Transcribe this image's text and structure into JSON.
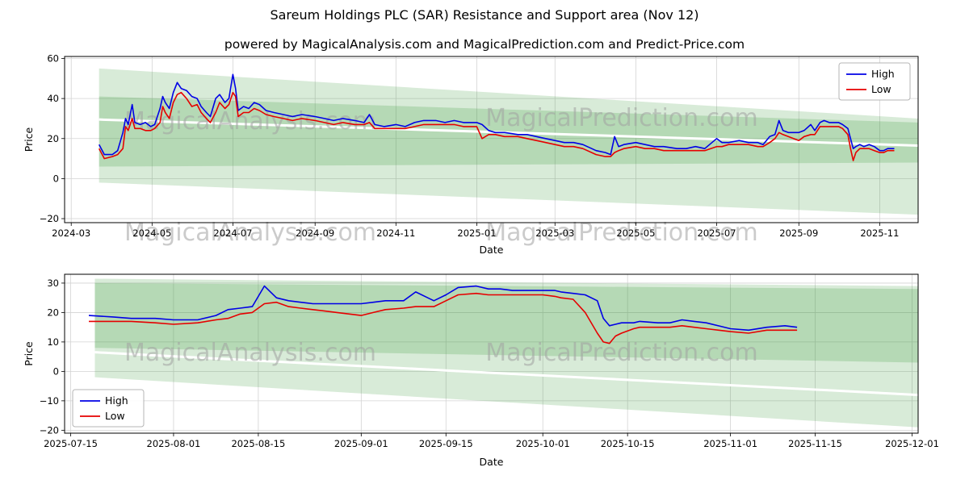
{
  "page": {
    "title": "Sareum Holdings PLC (SAR) Resistance and Support area (Nov 12)",
    "subtitle": "powered by MagicalAnalysis.com and MagicalPrediction.com and Predict-Price.com"
  },
  "watermark": {
    "left": "MagicalAnalysis.com",
    "right": "MagicalPrediction.com"
  },
  "colors": {
    "high": "#0000e6",
    "low": "#e60000",
    "band": "#3c9a3c",
    "grid": "#d3d3d3",
    "spine": "#000000",
    "watermark": "#a0a0a0"
  },
  "chart_data": [
    {
      "type": "line",
      "title": "",
      "xlabel": "Date",
      "ylabel": "Price",
      "x_domain": [
        "2024-02-25",
        "2025-11-30"
      ],
      "ylim": [
        -22,
        61
      ],
      "yticks": [
        -20,
        0,
        20,
        40,
        60
      ],
      "xticks": [
        {
          "label": "2024-03",
          "date": "2024-03-01"
        },
        {
          "label": "2024-05",
          "date": "2024-05-01"
        },
        {
          "label": "2024-07",
          "date": "2024-07-01"
        },
        {
          "label": "2024-09",
          "date": "2024-09-01"
        },
        {
          "label": "2024-11",
          "date": "2024-11-01"
        },
        {
          "label": "2025-01",
          "date": "2025-01-01"
        },
        {
          "label": "2025-03",
          "date": "2025-03-01"
        },
        {
          "label": "2025-05",
          "date": "2025-05-01"
        },
        {
          "label": "2025-07",
          "date": "2025-07-01"
        },
        {
          "label": "2025-09",
          "date": "2025-09-01"
        },
        {
          "label": "2025-11",
          "date": "2025-11-01"
        }
      ],
      "legend": {
        "position": "top-right",
        "items": [
          {
            "label": "High",
            "color": "high"
          },
          {
            "label": "Low",
            "color": "low"
          }
        ]
      },
      "bands": [
        {
          "x0": "2024-03-22",
          "x1": "2025-11-30",
          "top0": 55,
          "bot0": -2,
          "top1": 30,
          "bot1": -18,
          "opacity": 0.2
        },
        {
          "x0": "2024-03-22",
          "x1": "2025-11-30",
          "top0": 41,
          "bot0": 6,
          "top1": 28,
          "bot1": 8,
          "opacity": 0.22
        }
      ],
      "seams": [
        {
          "x0": "2024-03-22",
          "y0": 29.5,
          "x1": "2025-11-30",
          "y1": 16.5,
          "width": 3
        }
      ],
      "series": [
        {
          "name": "High",
          "color": "high",
          "x": [
            "2024-03-22",
            "2024-03-26",
            "2024-04-01",
            "2024-04-05",
            "2024-04-09",
            "2024-04-11",
            "2024-04-13",
            "2024-04-16",
            "2024-04-18",
            "2024-04-22",
            "2024-04-26",
            "2024-04-30",
            "2024-05-03",
            "2024-05-07",
            "2024-05-09",
            "2024-05-11",
            "2024-05-14",
            "2024-05-17",
            "2024-05-20",
            "2024-05-23",
            "2024-05-27",
            "2024-05-31",
            "2024-06-04",
            "2024-06-07",
            "2024-06-11",
            "2024-06-14",
            "2024-06-18",
            "2024-06-21",
            "2024-06-25",
            "2024-06-28",
            "2024-07-01",
            "2024-07-03",
            "2024-07-05",
            "2024-07-09",
            "2024-07-13",
            "2024-07-17",
            "2024-07-21",
            "2024-07-26",
            "2024-08-01",
            "2024-08-08",
            "2024-08-15",
            "2024-08-22",
            "2024-09-01",
            "2024-09-08",
            "2024-09-15",
            "2024-09-22",
            "2024-10-01",
            "2024-10-08",
            "2024-10-12",
            "2024-10-16",
            "2024-10-23",
            "2024-11-01",
            "2024-11-08",
            "2024-11-15",
            "2024-11-22",
            "2024-12-01",
            "2024-12-08",
            "2024-12-15",
            "2024-12-22",
            "2025-01-01",
            "2025-01-05",
            "2025-01-10",
            "2025-01-15",
            "2025-01-22",
            "2025-02-01",
            "2025-02-08",
            "2025-02-15",
            "2025-02-22",
            "2025-03-01",
            "2025-03-08",
            "2025-03-15",
            "2025-03-22",
            "2025-04-01",
            "2025-04-08",
            "2025-04-12",
            "2025-04-15",
            "2025-04-18",
            "2025-04-22",
            "2025-05-01",
            "2025-05-08",
            "2025-05-15",
            "2025-05-22",
            "2025-06-01",
            "2025-06-08",
            "2025-06-15",
            "2025-06-22",
            "2025-07-01",
            "2025-07-05",
            "2025-07-10",
            "2025-07-18",
            "2025-07-25",
            "2025-08-01",
            "2025-08-05",
            "2025-08-10",
            "2025-08-14",
            "2025-08-17",
            "2025-08-20",
            "2025-08-24",
            "2025-08-28",
            "2025-09-01",
            "2025-09-05",
            "2025-09-10",
            "2025-09-13",
            "2025-09-17",
            "2025-09-20",
            "2025-09-24",
            "2025-09-28",
            "2025-10-01",
            "2025-10-04",
            "2025-10-08",
            "2025-10-10",
            "2025-10-12",
            "2025-10-14",
            "2025-10-17",
            "2025-10-20",
            "2025-10-24",
            "2025-10-28",
            "2025-11-01",
            "2025-11-04",
            "2025-11-07",
            "2025-11-10",
            "2025-11-12"
          ],
          "y": [
            17,
            12,
            12,
            14,
            23,
            30,
            27,
            37,
            28,
            27,
            28,
            26,
            27,
            35,
            41,
            38,
            35,
            43,
            48,
            45,
            44,
            41,
            40,
            36,
            33,
            31,
            40,
            42,
            38,
            40,
            52,
            45,
            34,
            36,
            35,
            38,
            37,
            34,
            33,
            32,
            31,
            32,
            31,
            30,
            29,
            30,
            29,
            28,
            32,
            27,
            26,
            27,
            26,
            28,
            29,
            29,
            28,
            29,
            28,
            28,
            27,
            24,
            23,
            23,
            22,
            22,
            21,
            20,
            19,
            18,
            18,
            17,
            14,
            13,
            12,
            21,
            16,
            17,
            18,
            17,
            16,
            16,
            15,
            15,
            16,
            15,
            20,
            18,
            18,
            19,
            18,
            18,
            17,
            21,
            22,
            29,
            24,
            23,
            23,
            23,
            24,
            27,
            24,
            28,
            29,
            28,
            28,
            28,
            27,
            25,
            20,
            15,
            16,
            17,
            16,
            17,
            16,
            14,
            14,
            15,
            15,
            15
          ]
        },
        {
          "name": "Low",
          "color": "low",
          "x": [
            "2024-03-22",
            "2024-03-26",
            "2024-04-01",
            "2024-04-05",
            "2024-04-09",
            "2024-04-11",
            "2024-04-13",
            "2024-04-16",
            "2024-04-18",
            "2024-04-22",
            "2024-04-26",
            "2024-04-30",
            "2024-05-03",
            "2024-05-07",
            "2024-05-09",
            "2024-05-11",
            "2024-05-14",
            "2024-05-17",
            "2024-05-20",
            "2024-05-23",
            "2024-05-27",
            "2024-05-31",
            "2024-06-04",
            "2024-06-07",
            "2024-06-11",
            "2024-06-14",
            "2024-06-18",
            "2024-06-21",
            "2024-06-25",
            "2024-06-28",
            "2024-07-01",
            "2024-07-03",
            "2024-07-05",
            "2024-07-09",
            "2024-07-13",
            "2024-07-17",
            "2024-07-21",
            "2024-07-26",
            "2024-08-01",
            "2024-08-08",
            "2024-08-15",
            "2024-08-22",
            "2024-09-01",
            "2024-09-08",
            "2024-09-15",
            "2024-09-22",
            "2024-10-01",
            "2024-10-08",
            "2024-10-12",
            "2024-10-16",
            "2024-10-23",
            "2024-11-01",
            "2024-11-08",
            "2024-11-15",
            "2024-11-22",
            "2024-12-01",
            "2024-12-08",
            "2024-12-15",
            "2024-12-22",
            "2025-01-01",
            "2025-01-05",
            "2025-01-10",
            "2025-01-15",
            "2025-01-22",
            "2025-02-01",
            "2025-02-08",
            "2025-02-15",
            "2025-02-22",
            "2025-03-01",
            "2025-03-08",
            "2025-03-15",
            "2025-03-22",
            "2025-04-01",
            "2025-04-08",
            "2025-04-12",
            "2025-04-15",
            "2025-04-18",
            "2025-04-22",
            "2025-05-01",
            "2025-05-08",
            "2025-05-15",
            "2025-05-22",
            "2025-06-01",
            "2025-06-08",
            "2025-06-15",
            "2025-06-22",
            "2025-07-01",
            "2025-07-05",
            "2025-07-10",
            "2025-07-18",
            "2025-07-25",
            "2025-08-01",
            "2025-08-05",
            "2025-08-10",
            "2025-08-14",
            "2025-08-17",
            "2025-08-20",
            "2025-08-24",
            "2025-08-28",
            "2025-09-01",
            "2025-09-05",
            "2025-09-10",
            "2025-09-13",
            "2025-09-17",
            "2025-09-20",
            "2025-09-24",
            "2025-09-28",
            "2025-10-01",
            "2025-10-04",
            "2025-10-08",
            "2025-10-10",
            "2025-10-12",
            "2025-10-14",
            "2025-10-17",
            "2025-10-20",
            "2025-10-24",
            "2025-10-28",
            "2025-11-01",
            "2025-11-04",
            "2025-11-07",
            "2025-11-10",
            "2025-11-12"
          ],
          "y": [
            15,
            10,
            11,
            12,
            15,
            26,
            24,
            30,
            25,
            25,
            24,
            24,
            25,
            28,
            36,
            33,
            30,
            38,
            42,
            43,
            40,
            36,
            37,
            33,
            30,
            28,
            33,
            38,
            35,
            37,
            43,
            41,
            31,
            33,
            33,
            35,
            34,
            32,
            31,
            30,
            29,
            30,
            29,
            28,
            27,
            28,
            27,
            27,
            28,
            25,
            25,
            25,
            25,
            26,
            27,
            27,
            27,
            27,
            26,
            26,
            20,
            22,
            22,
            21,
            21,
            20,
            19,
            18,
            17,
            16,
            16,
            15,
            12,
            11,
            11,
            13,
            14,
            15,
            16,
            15,
            15,
            14,
            14,
            14,
            14,
            14,
            16,
            16,
            17,
            17,
            17,
            16,
            16,
            18,
            20,
            23,
            22,
            21,
            20,
            19,
            21,
            22,
            22,
            26,
            26,
            26,
            26,
            26,
            25,
            22,
            15,
            9,
            13,
            15,
            15,
            15,
            14,
            13,
            13,
            14,
            14,
            14
          ]
        }
      ]
    },
    {
      "type": "line",
      "title": "",
      "xlabel": "Date",
      "ylabel": "Price",
      "x_domain": [
        "2025-07-14",
        "2025-12-02"
      ],
      "ylim": [
        -21,
        33
      ],
      "yticks": [
        -20,
        -10,
        0,
        10,
        20,
        30
      ],
      "xticks": [
        {
          "label": "2025-07-15",
          "date": "2025-07-15"
        },
        {
          "label": "2025-08-01",
          "date": "2025-08-01"
        },
        {
          "label": "2025-08-15",
          "date": "2025-08-15"
        },
        {
          "label": "2025-09-01",
          "date": "2025-09-01"
        },
        {
          "label": "2025-09-15",
          "date": "2025-09-15"
        },
        {
          "label": "2025-10-01",
          "date": "2025-10-01"
        },
        {
          "label": "2025-10-15",
          "date": "2025-10-15"
        },
        {
          "label": "2025-11-01",
          "date": "2025-11-01"
        },
        {
          "label": "2025-11-15",
          "date": "2025-11-15"
        },
        {
          "label": "2025-12-01",
          "date": "2025-12-01"
        }
      ],
      "legend": {
        "position": "bottom-left",
        "items": [
          {
            "label": "High",
            "color": "high"
          },
          {
            "label": "Low",
            "color": "low"
          }
        ]
      },
      "bands": [
        {
          "x0": "2025-07-19",
          "x1": "2025-12-02",
          "top0": 31.5,
          "bot0": -2,
          "top1": 29,
          "bot1": -19,
          "opacity": 0.2
        },
        {
          "x0": "2025-07-19",
          "x1": "2025-12-02",
          "top0": 30,
          "bot0": 8,
          "top1": 28,
          "bot1": 3,
          "opacity": 0.22
        }
      ],
      "seams": [
        {
          "x0": "2025-07-19",
          "y0": 6.5,
          "x1": "2025-12-02",
          "y1": -8,
          "width": 3
        }
      ],
      "series": [
        {
          "name": "High",
          "color": "high",
          "x": [
            "2025-07-18",
            "2025-07-22",
            "2025-07-25",
            "2025-07-29",
            "2025-08-01",
            "2025-08-05",
            "2025-08-08",
            "2025-08-10",
            "2025-08-12",
            "2025-08-14",
            "2025-08-16",
            "2025-08-18",
            "2025-08-20",
            "2025-08-22",
            "2025-08-24",
            "2025-08-26",
            "2025-08-28",
            "2025-09-01",
            "2025-09-03",
            "2025-09-05",
            "2025-09-08",
            "2025-09-10",
            "2025-09-12",
            "2025-09-13",
            "2025-09-15",
            "2025-09-17",
            "2025-09-20",
            "2025-09-22",
            "2025-09-24",
            "2025-09-26",
            "2025-09-28",
            "2025-10-01",
            "2025-10-03",
            "2025-10-04",
            "2025-10-06",
            "2025-10-08",
            "2025-10-10",
            "2025-10-11",
            "2025-10-12",
            "2025-10-13",
            "2025-10-14",
            "2025-10-16",
            "2025-10-17",
            "2025-10-20",
            "2025-10-22",
            "2025-10-24",
            "2025-10-26",
            "2025-10-28",
            "2025-11-01",
            "2025-11-04",
            "2025-11-07",
            "2025-11-10",
            "2025-11-12"
          ],
          "y": [
            19,
            18.5,
            18,
            18,
            17.5,
            17.5,
            19,
            21,
            21.5,
            22,
            29,
            25,
            24,
            23.5,
            23,
            23,
            23,
            23,
            23.5,
            24,
            24,
            27,
            25,
            24,
            26,
            28.5,
            29,
            28,
            28,
            27.5,
            27.5,
            27.5,
            27.5,
            27,
            26.5,
            26,
            24,
            18,
            15.5,
            16,
            16.5,
            16.5,
            17,
            16.5,
            16.5,
            17.5,
            17,
            16.5,
            14.5,
            14,
            15,
            15.5,
            15
          ]
        },
        {
          "name": "Low",
          "color": "low",
          "x": [
            "2025-07-18",
            "2025-07-22",
            "2025-07-25",
            "2025-07-29",
            "2025-08-01",
            "2025-08-05",
            "2025-08-08",
            "2025-08-10",
            "2025-08-12",
            "2025-08-14",
            "2025-08-16",
            "2025-08-18",
            "2025-08-20",
            "2025-08-22",
            "2025-08-24",
            "2025-08-26",
            "2025-08-28",
            "2025-09-01",
            "2025-09-03",
            "2025-09-05",
            "2025-09-08",
            "2025-09-10",
            "2025-09-12",
            "2025-09-13",
            "2025-09-15",
            "2025-09-17",
            "2025-09-20",
            "2025-09-22",
            "2025-09-24",
            "2025-09-26",
            "2025-09-28",
            "2025-10-01",
            "2025-10-03",
            "2025-10-04",
            "2025-10-06",
            "2025-10-08",
            "2025-10-10",
            "2025-10-11",
            "2025-10-12",
            "2025-10-13",
            "2025-10-14",
            "2025-10-16",
            "2025-10-17",
            "2025-10-20",
            "2025-10-22",
            "2025-10-24",
            "2025-10-26",
            "2025-10-28",
            "2025-11-01",
            "2025-11-04",
            "2025-11-07",
            "2025-11-10",
            "2025-11-12"
          ],
          "y": [
            17,
            17,
            17,
            16.5,
            16,
            16.5,
            17.5,
            18,
            19.5,
            20,
            23,
            23.5,
            22,
            21.5,
            21,
            20.5,
            20,
            19,
            20,
            21,
            21.5,
            22,
            22,
            22,
            24,
            26,
            26.5,
            26,
            26,
            26,
            26,
            26,
            25.5,
            25,
            24.5,
            20,
            13,
            10,
            9.5,
            12,
            13,
            14.5,
            15,
            15,
            15,
            15.5,
            15,
            14.5,
            13.5,
            13,
            14,
            14,
            14
          ]
        }
      ]
    }
  ]
}
